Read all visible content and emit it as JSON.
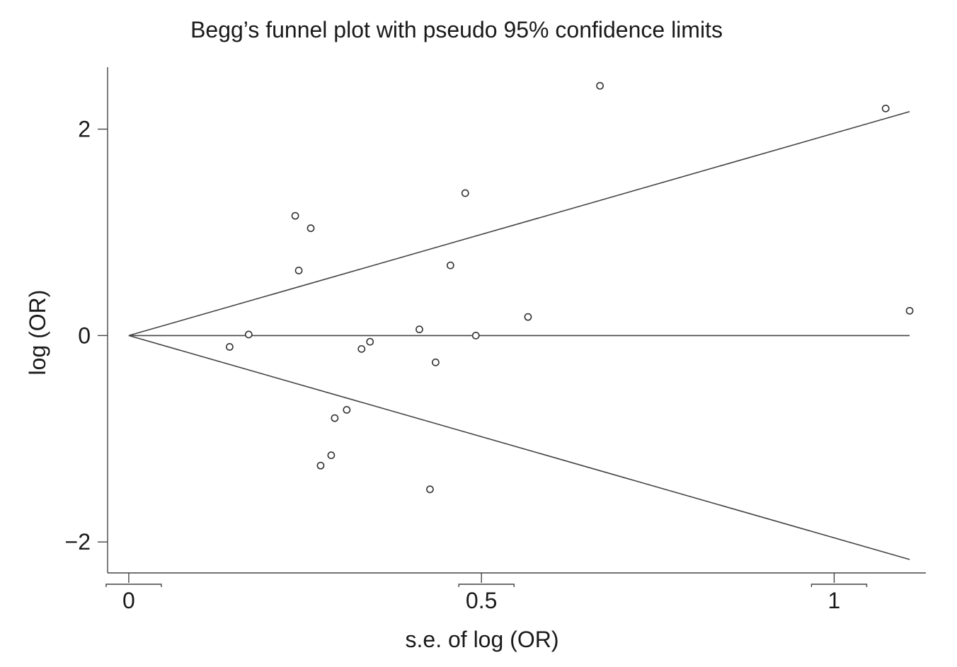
{
  "chart_data": {
    "type": "scatter",
    "title": "Begg’s funnel plot with pseudo 95% confidence limits",
    "xlabel": "s.e. of log (OR)",
    "ylabel": "log (OR)",
    "xlim": [
      -0.03,
      1.13
    ],
    "ylim": [
      -2.3,
      2.6
    ],
    "x_ticks": [
      0,
      0.5,
      1
    ],
    "x_tick_labels": [
      "0",
      "0.5",
      "1"
    ],
    "y_ticks": [
      -2,
      0,
      2
    ],
    "y_tick_labels": [
      "−2",
      "0",
      "2"
    ],
    "grid": false,
    "legend": "none",
    "pooled_estimate": 0,
    "confidence_z": 1.96,
    "funnel_x_max": 1.107,
    "points": [
      {
        "x": 0.143,
        "y": -0.11
      },
      {
        "x": 0.17,
        "y": 0.01
      },
      {
        "x": 0.236,
        "y": 1.16
      },
      {
        "x": 0.241,
        "y": 0.63
      },
      {
        "x": 0.258,
        "y": 1.04
      },
      {
        "x": 0.272,
        "y": -1.26
      },
      {
        "x": 0.287,
        "y": -1.16
      },
      {
        "x": 0.292,
        "y": -0.8
      },
      {
        "x": 0.309,
        "y": -0.72
      },
      {
        "x": 0.33,
        "y": -0.13
      },
      {
        "x": 0.342,
        "y": -0.06
      },
      {
        "x": 0.412,
        "y": 0.06
      },
      {
        "x": 0.427,
        "y": -1.49
      },
      {
        "x": 0.435,
        "y": -0.26
      },
      {
        "x": 0.456,
        "y": 0.68
      },
      {
        "x": 0.477,
        "y": 1.38
      },
      {
        "x": 0.492,
        "y": 0.0
      },
      {
        "x": 0.566,
        "y": 0.18
      },
      {
        "x": 0.668,
        "y": 2.42
      },
      {
        "x": 1.073,
        "y": 2.2
      },
      {
        "x": 1.107,
        "y": 0.24
      }
    ]
  }
}
